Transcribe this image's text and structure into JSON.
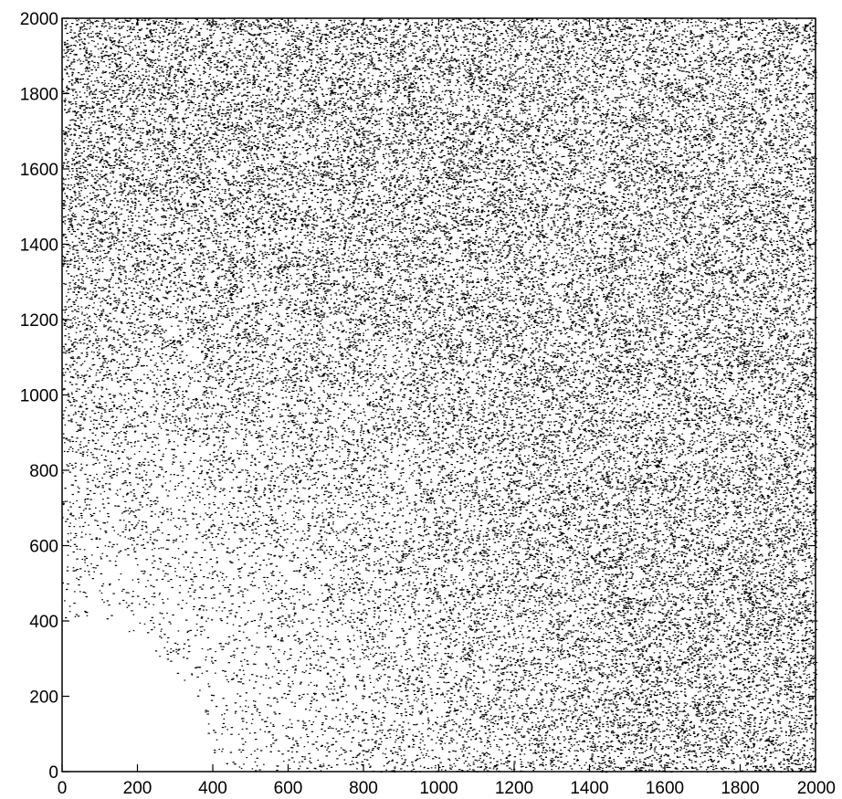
{
  "chart_data": {
    "type": "scatter",
    "title": "",
    "xlabel": "",
    "ylabel": "",
    "xlim": [
      0,
      2000
    ],
    "ylim": [
      0,
      2000
    ],
    "xticks": [
      0,
      200,
      400,
      600,
      800,
      1000,
      1200,
      1400,
      1600,
      1800,
      2000
    ],
    "yticks": [
      0,
      200,
      400,
      600,
      800,
      1000,
      1200,
      1400,
      1600,
      1800,
      2000
    ],
    "xtick_labels": [
      "0",
      "200",
      "400",
      "600",
      "800",
      "1000",
      "1200",
      "1400",
      "1600",
      "1800",
      "2000"
    ],
    "ytick_labels": [
      "0",
      "200",
      "400",
      "600",
      "800",
      "1000",
      "1200",
      "1400",
      "1600",
      "1800",
      "2000"
    ],
    "grid": false,
    "legend": "none",
    "marker_color": "#000000",
    "axis_color": "#000000",
    "background": "#ffffff",
    "series": [
      {
        "values_description_note": "",
        "density_profile": {
          "empty_region_radius": 400,
          "sparse_radius": 900,
          "dense_radius": 1500,
          "approx_points": 60000
        }
      }
    ]
  }
}
